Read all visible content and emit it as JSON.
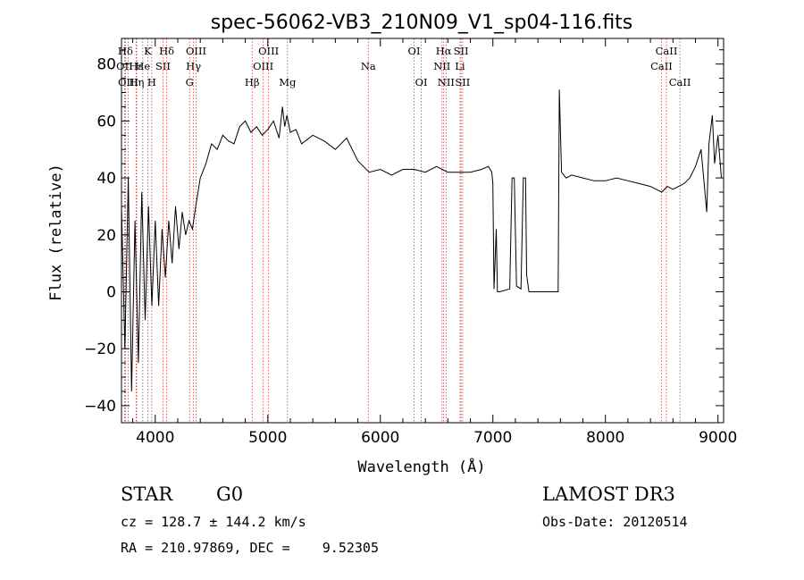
{
  "chart_data": {
    "type": "line",
    "title": "spec-56062-VB3_210N09_V1_sp04-116.fits",
    "xlabel": "Wavelength (Å)",
    "ylabel": "Flux (relative)",
    "xlim": [
      3700,
      9050
    ],
    "ylim": [
      -46,
      89
    ],
    "xticks": [
      4000,
      5000,
      6000,
      7000,
      8000,
      9000
    ],
    "yticks": [
      -40,
      -20,
      0,
      20,
      40,
      60,
      80
    ],
    "series": [
      {
        "name": "spectrum",
        "x": [
          3700,
          3730,
          3760,
          3790,
          3820,
          3850,
          3880,
          3910,
          3940,
          3970,
          4000,
          4030,
          4060,
          4090,
          4120,
          4150,
          4180,
          4210,
          4240,
          4270,
          4300,
          4330,
          4360,
          4400,
          4450,
          4500,
          4550,
          4600,
          4650,
          4700,
          4750,
          4800,
          4850,
          4900,
          4950,
          5000,
          5050,
          5100,
          5130,
          5150,
          5170,
          5200,
          5250,
          5300,
          5400,
          5500,
          5600,
          5700,
          5800,
          5850,
          5900,
          6000,
          6100,
          6200,
          6300,
          6400,
          6500,
          6600,
          6700,
          6800,
          6900,
          6960,
          6990,
          7000,
          7010,
          7030,
          7040,
          7060,
          7150,
          7170,
          7190,
          7210,
          7250,
          7270,
          7290,
          7300,
          7320,
          7340,
          7360,
          7380,
          7450,
          7550,
          7580,
          7590,
          7610,
          7650,
          7700,
          7800,
          7900,
          8000,
          8100,
          8200,
          8300,
          8400,
          8500,
          8550,
          8600,
          8650,
          8700,
          8750,
          8800,
          8850,
          8900,
          8920,
          8950,
          8970,
          9000,
          9030
        ],
        "values": [
          30,
          -20,
          40,
          -35,
          25,
          -25,
          35,
          -10,
          30,
          -5,
          25,
          -5,
          22,
          5,
          25,
          10,
          30,
          15,
          28,
          20,
          25,
          22,
          30,
          40,
          45,
          52,
          50,
          55,
          53,
          52,
          58,
          60,
          56,
          58,
          55,
          57,
          60,
          54,
          65,
          58,
          62,
          56,
          57,
          52,
          55,
          53,
          50,
          54,
          46,
          44,
          42,
          43,
          41,
          43,
          43,
          42,
          44,
          42,
          42,
          42,
          43,
          44,
          42,
          38,
          1,
          22,
          0,
          0,
          1,
          40,
          40,
          2,
          1,
          40,
          40,
          6,
          0,
          0,
          0,
          0,
          0,
          0,
          0,
          71,
          42,
          40,
          41,
          40,
          39,
          39,
          40,
          39,
          38,
          37,
          35,
          37,
          36,
          37,
          38,
          40,
          44,
          50,
          28,
          52,
          62,
          45,
          55,
          40
        ]
      }
    ],
    "line_ids": [
      {
        "name": "Hδ",
        "wave": 3735,
        "row": 0
      },
      {
        "name": "OII",
        "wave": 3727,
        "row": 1
      },
      {
        "name": "OIII",
        "wave": 3760,
        "row": 2
      },
      {
        "name": "Hε",
        "wave": 3830,
        "row": 1
      },
      {
        "name": "K",
        "wave": 3934,
        "row": 0
      },
      {
        "name": "He",
        "wave": 3889,
        "row": 1
      },
      {
        "name": "Hη",
        "wave": 3835,
        "row": 2
      },
      {
        "name": "SII",
        "wave": 4069,
        "row": 1
      },
      {
        "name": "H",
        "wave": 3969,
        "row": 2
      },
      {
        "name": "Hδ",
        "wave": 4102,
        "row": 0
      },
      {
        "name": "OIII",
        "wave": 4363,
        "row": 0
      },
      {
        "name": "Hγ",
        "wave": 4340,
        "row": 1
      },
      {
        "name": "G",
        "wave": 4305,
        "row": 2
      },
      {
        "name": "Hβ",
        "wave": 4861,
        "row": 2
      },
      {
        "name": "OIII",
        "wave": 5007,
        "row": 0
      },
      {
        "name": "OIII",
        "wave": 4959,
        "row": 1
      },
      {
        "name": "Mg",
        "wave": 5175,
        "row": 2
      },
      {
        "name": "Na",
        "wave": 5893,
        "row": 1
      },
      {
        "name": "OI",
        "wave": 6300,
        "row": 0
      },
      {
        "name": "OI",
        "wave": 6364,
        "row": 2
      },
      {
        "name": "Hα",
        "wave": 6563,
        "row": 0
      },
      {
        "name": "NII",
        "wave": 6548,
        "row": 1
      },
      {
        "name": "NII",
        "wave": 6584,
        "row": 2
      },
      {
        "name": "SII",
        "wave": 6717,
        "row": 0
      },
      {
        "name": "Li",
        "wave": 6708,
        "row": 1
      },
      {
        "name": "SII",
        "wave": 6731,
        "row": 2
      },
      {
        "name": "CaII",
        "wave": 8542,
        "row": 0
      },
      {
        "name": "CaII",
        "wave": 8498,
        "row": 1
      },
      {
        "name": "CaII",
        "wave": 8662,
        "row": 2
      }
    ]
  },
  "info": {
    "class": "STAR",
    "subclass": "G0",
    "survey": "LAMOST DR3",
    "cz": "cz = 128.7 ± 144.2 km/s",
    "obsdate": "Obs-Date: 20120514",
    "radec": "RA = 210.97869, DEC =    9.52305"
  }
}
